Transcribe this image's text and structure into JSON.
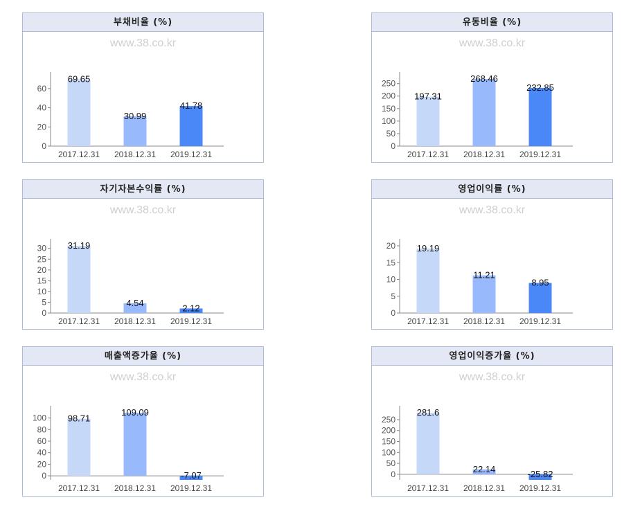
{
  "watermark": "www.38.co.kr",
  "colors": [
    "#c6d8f8",
    "#98bafc",
    "#4b88f7"
  ],
  "chart_data": [
    {
      "type": "bar",
      "title": "부채비율 (%)",
      "categories": [
        "2017.12.31",
        "2018.12.31",
        "2019.12.31"
      ],
      "values": [
        69.65,
        30.99,
        41.78
      ],
      "value_labels": [
        "69.65",
        "30.99",
        "41.78"
      ],
      "yticks": [
        0,
        20,
        40,
        60
      ],
      "ylim": [
        0,
        70
      ]
    },
    {
      "type": "bar",
      "title": "유동비율 (%)",
      "categories": [
        "2017.12.31",
        "2018.12.31",
        "2019.12.31"
      ],
      "values": [
        197.31,
        268.46,
        232.85
      ],
      "value_labels": [
        "197.31",
        "268.46",
        "232.85"
      ],
      "yticks": [
        0,
        50,
        100,
        150,
        200,
        250
      ],
      "ylim": [
        0,
        268.46
      ]
    },
    {
      "type": "bar",
      "title": "자기자본수익률 (%)",
      "categories": [
        "2017.12.31",
        "2018.12.31",
        "2019.12.31"
      ],
      "values": [
        31.19,
        4.54,
        2.12
      ],
      "value_labels": [
        "31.19",
        "4.54",
        "2.12"
      ],
      "yticks": [
        0,
        5,
        10,
        15,
        20,
        25,
        30
      ],
      "ylim": [
        0,
        31.19
      ]
    },
    {
      "type": "bar",
      "title": "영업이익률 (%)",
      "categories": [
        "2017.12.31",
        "2018.12.31",
        "2019.12.31"
      ],
      "values": [
        19.19,
        11.21,
        8.95
      ],
      "value_labels": [
        "19.19",
        "11.21",
        "8.95"
      ],
      "yticks": [
        0,
        5,
        10,
        15,
        20
      ],
      "ylim": [
        0,
        20
      ]
    },
    {
      "type": "bar",
      "title": "매출액증가율 (%)",
      "categories": [
        "2017.12.31",
        "2018.12.31",
        "2019.12.31"
      ],
      "values": [
        98.71,
        109.09,
        -7.07
      ],
      "value_labels": [
        "98.71",
        "109.09",
        "-7.07"
      ],
      "yticks": [
        0,
        20,
        40,
        60,
        80,
        100
      ],
      "ylim": [
        -7.07,
        109.09
      ]
    },
    {
      "type": "bar",
      "title": "영업이익증가율 (%)",
      "categories": [
        "2017.12.31",
        "2018.12.31",
        "2019.12.31"
      ],
      "values": [
        281.6,
        22.14,
        -25.82
      ],
      "value_labels": [
        "281.6",
        "22.14",
        "-25.82"
      ],
      "yticks": [
        0,
        50,
        100,
        150,
        200,
        250
      ],
      "ylim": [
        -25.82,
        281.6
      ]
    }
  ]
}
